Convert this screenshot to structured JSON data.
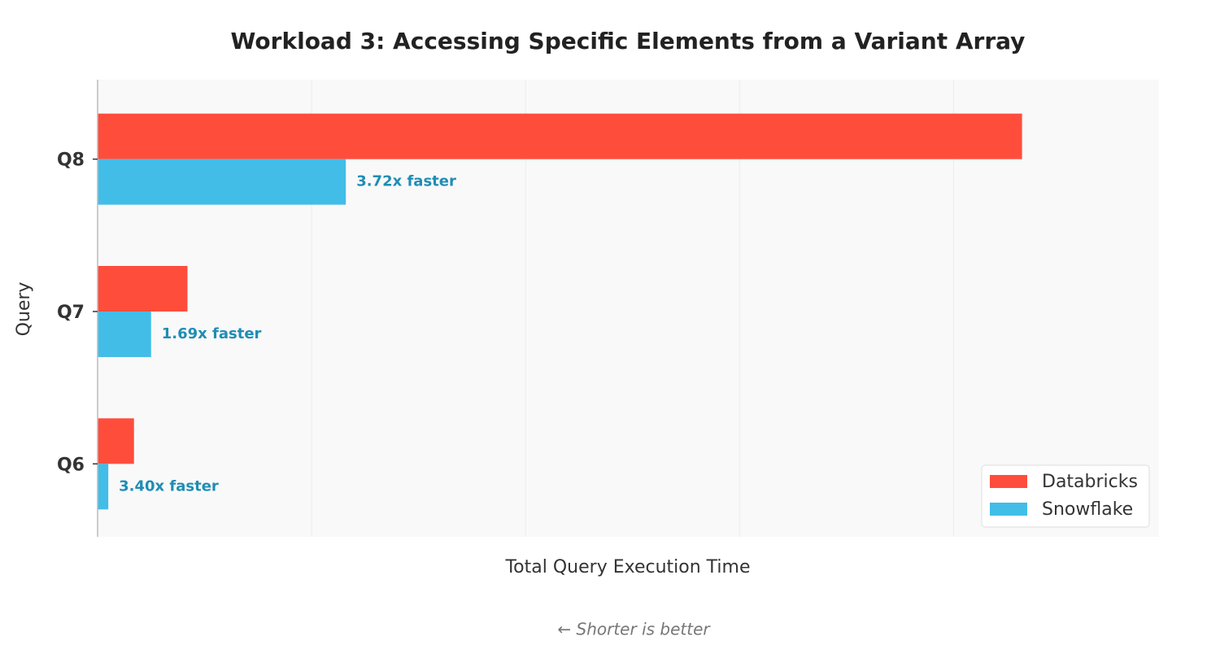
{
  "chart_data": {
    "type": "barh",
    "title": "Workload 3: Accessing Specific Elements from a Variant Array",
    "xlabel": "Total Query Execution Time",
    "ylabel": "Query",
    "footnote": "← Shorter is better",
    "categories": [
      "Q8",
      "Q7",
      "Q6"
    ],
    "series": [
      {
        "name": "Databricks",
        "color": "#ff4d3c",
        "values": [
          4.32,
          0.42,
          0.17
        ]
      },
      {
        "name": "Snowflake",
        "color": "#42bde8",
        "values": [
          1.16,
          0.25,
          0.05
        ]
      }
    ],
    "annotations": [
      "3.72x faster",
      "1.69x faster",
      "3.40x faster"
    ],
    "xlim": [
      0,
      4.96
    ],
    "xticks": [
      0,
      1,
      2,
      3,
      4
    ],
    "grid": true,
    "legend": "lower right"
  }
}
